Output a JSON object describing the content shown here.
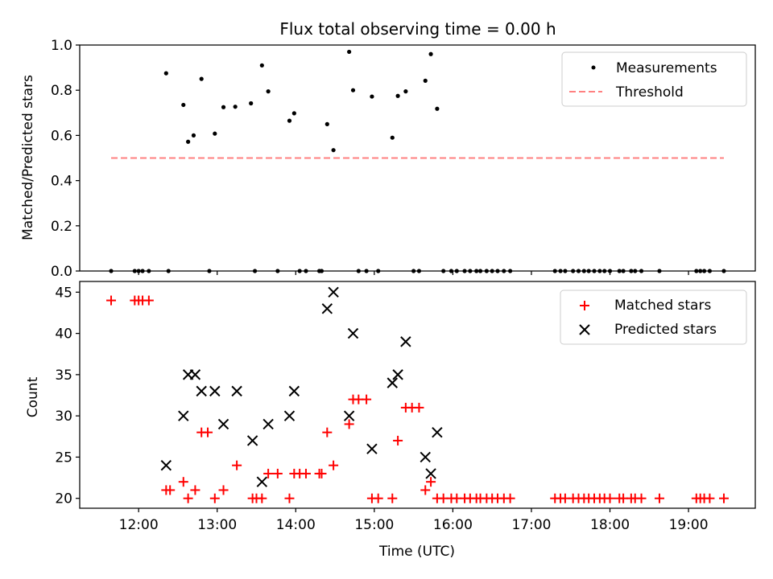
{
  "chart_data": [
    {
      "type": "scatter",
      "title": "Flux total observing time = 0.00 h",
      "ylabel": "Matched/Predicted stars",
      "xlabel": "",
      "ylim": [
        0,
        1.0
      ],
      "xlim": [
        11.25,
        19.85
      ],
      "yticks": [
        "0.0",
        "0.2",
        "0.4",
        "0.6",
        "0.8",
        "1.0"
      ],
      "grid": false,
      "legend_position": "top-right",
      "legend": [
        "Measurements",
        "Threshold"
      ],
      "series": [
        {
          "name": "Measurements",
          "marker": "dot",
          "color": "#000000",
          "points": [
            [
              11.65,
              0
            ],
            [
              11.95,
              0
            ],
            [
              12.0,
              0
            ],
            [
              12.05,
              0
            ],
            [
              12.13,
              0
            ],
            [
              12.35,
              0.875
            ],
            [
              12.38,
              0
            ],
            [
              12.57,
              0.735
            ],
            [
              12.63,
              0.572
            ],
            [
              12.7,
              0.6
            ],
            [
              12.8,
              0.85
            ],
            [
              12.9,
              0
            ],
            [
              12.97,
              0.608
            ],
            [
              13.08,
              0.725
            ],
            [
              13.23,
              0.727
            ],
            [
              13.43,
              0.742
            ],
            [
              13.48,
              0
            ],
            [
              13.57,
              0.91
            ],
            [
              13.65,
              0.795
            ],
            [
              13.77,
              0
            ],
            [
              13.92,
              0.665
            ],
            [
              13.98,
              0.698
            ],
            [
              14.05,
              0
            ],
            [
              14.13,
              0
            ],
            [
              14.3,
              0
            ],
            [
              14.33,
              0
            ],
            [
              14.4,
              0.65
            ],
            [
              14.48,
              0.535
            ],
            [
              14.68,
              0.97
            ],
            [
              14.73,
              0.8
            ],
            [
              14.8,
              0
            ],
            [
              14.9,
              0
            ],
            [
              14.97,
              0.772
            ],
            [
              15.05,
              0
            ],
            [
              15.23,
              0.59
            ],
            [
              15.3,
              0.775
            ],
            [
              15.4,
              0.795
            ],
            [
              15.5,
              0
            ],
            [
              15.57,
              0
            ],
            [
              15.65,
              0.842
            ],
            [
              15.72,
              0.96
            ],
            [
              15.8,
              0.718
            ],
            [
              15.88,
              0
            ],
            [
              15.98,
              0
            ],
            [
              16.05,
              0
            ],
            [
              16.15,
              0
            ],
            [
              16.22,
              0
            ],
            [
              16.3,
              0
            ],
            [
              16.35,
              0
            ],
            [
              16.43,
              0
            ],
            [
              16.5,
              0
            ],
            [
              16.57,
              0
            ],
            [
              16.65,
              0
            ],
            [
              16.73,
              0
            ],
            [
              17.3,
              0
            ],
            [
              17.37,
              0
            ],
            [
              17.43,
              0
            ],
            [
              17.53,
              0
            ],
            [
              17.6,
              0
            ],
            [
              17.67,
              0
            ],
            [
              17.73,
              0
            ],
            [
              17.8,
              0
            ],
            [
              17.87,
              0
            ],
            [
              17.93,
              0
            ],
            [
              18.0,
              0
            ],
            [
              18.12,
              0
            ],
            [
              18.17,
              0
            ],
            [
              18.27,
              0
            ],
            [
              18.32,
              0
            ],
            [
              18.4,
              0
            ],
            [
              18.63,
              0
            ],
            [
              19.1,
              0
            ],
            [
              19.15,
              0
            ],
            [
              19.2,
              0
            ],
            [
              19.27,
              0
            ],
            [
              19.45,
              0
            ]
          ]
        },
        {
          "name": "Threshold",
          "line_style": "dashed",
          "color": "#ff8080",
          "x": [
            11.65,
            19.45
          ],
          "y": [
            0.5,
            0.5
          ]
        }
      ]
    },
    {
      "type": "scatter",
      "title": "",
      "ylabel": "Count",
      "xlabel": "Time (UTC)",
      "ylim": [
        18.8,
        46.3
      ],
      "xlim": [
        11.25,
        19.85
      ],
      "yticks": [
        "20",
        "25",
        "30",
        "35",
        "40",
        "45"
      ],
      "xticks": [
        "12:00",
        "13:00",
        "14:00",
        "15:00",
        "16:00",
        "17:00",
        "18:00",
        "19:00"
      ],
      "grid": false,
      "legend_position": "top-right",
      "legend": [
        "Matched stars",
        "Predicted stars"
      ],
      "series": [
        {
          "name": "Matched stars",
          "marker": "plus",
          "color": "#ff0000",
          "points": [
            [
              11.65,
              44
            ],
            [
              11.95,
              44
            ],
            [
              12.0,
              44
            ],
            [
              12.05,
              44
            ],
            [
              12.13,
              44
            ],
            [
              12.35,
              21
            ],
            [
              12.4,
              21
            ],
            [
              12.57,
              22
            ],
            [
              12.63,
              20
            ],
            [
              12.72,
              21
            ],
            [
              12.8,
              28
            ],
            [
              12.88,
              28
            ],
            [
              12.97,
              20
            ],
            [
              13.08,
              21
            ],
            [
              13.25,
              24
            ],
            [
              13.45,
              20
            ],
            [
              13.5,
              20
            ],
            [
              13.57,
              20
            ],
            [
              13.65,
              23
            ],
            [
              13.77,
              23
            ],
            [
              13.92,
              20
            ],
            [
              13.98,
              23
            ],
            [
              14.05,
              23
            ],
            [
              14.13,
              23
            ],
            [
              14.3,
              23
            ],
            [
              14.33,
              23
            ],
            [
              14.4,
              28
            ],
            [
              14.48,
              24
            ],
            [
              14.68,
              29
            ],
            [
              14.73,
              32
            ],
            [
              14.8,
              32
            ],
            [
              14.9,
              32
            ],
            [
              14.97,
              20
            ],
            [
              15.05,
              20
            ],
            [
              15.23,
              20
            ],
            [
              15.3,
              27
            ],
            [
              15.4,
              31
            ],
            [
              15.48,
              31
            ],
            [
              15.57,
              31
            ],
            [
              15.65,
              21
            ],
            [
              15.72,
              22
            ],
            [
              15.8,
              20
            ],
            [
              15.88,
              20
            ],
            [
              15.98,
              20
            ],
            [
              16.05,
              20
            ],
            [
              16.15,
              20
            ],
            [
              16.22,
              20
            ],
            [
              16.3,
              20
            ],
            [
              16.35,
              20
            ],
            [
              16.43,
              20
            ],
            [
              16.5,
              20
            ],
            [
              16.57,
              20
            ],
            [
              16.65,
              20
            ],
            [
              16.73,
              20
            ],
            [
              17.3,
              20
            ],
            [
              17.37,
              20
            ],
            [
              17.43,
              20
            ],
            [
              17.53,
              20
            ],
            [
              17.6,
              20
            ],
            [
              17.67,
              20
            ],
            [
              17.73,
              20
            ],
            [
              17.8,
              20
            ],
            [
              17.87,
              20
            ],
            [
              17.93,
              20
            ],
            [
              18.0,
              20
            ],
            [
              18.12,
              20
            ],
            [
              18.17,
              20
            ],
            [
              18.27,
              20
            ],
            [
              18.32,
              20
            ],
            [
              18.4,
              20
            ],
            [
              18.63,
              20
            ],
            [
              19.1,
              20
            ],
            [
              19.15,
              20
            ],
            [
              19.2,
              20
            ],
            [
              19.27,
              20
            ],
            [
              19.45,
              20
            ]
          ]
        },
        {
          "name": "Predicted stars",
          "marker": "x",
          "color": "#000000",
          "points": [
            [
              12.35,
              24
            ],
            [
              12.57,
              30
            ],
            [
              12.63,
              35
            ],
            [
              12.72,
              35
            ],
            [
              12.8,
              33
            ],
            [
              12.97,
              33
            ],
            [
              13.08,
              29
            ],
            [
              13.25,
              33
            ],
            [
              13.45,
              27
            ],
            [
              13.57,
              22
            ],
            [
              13.65,
              29
            ],
            [
              13.92,
              30
            ],
            [
              13.98,
              33
            ],
            [
              14.4,
              43
            ],
            [
              14.48,
              45
            ],
            [
              14.68,
              30
            ],
            [
              14.73,
              40
            ],
            [
              14.97,
              26
            ],
            [
              15.23,
              34
            ],
            [
              15.3,
              35
            ],
            [
              15.4,
              39
            ],
            [
              15.65,
              25
            ],
            [
              15.72,
              23
            ],
            [
              15.8,
              28
            ]
          ]
        }
      ]
    }
  ]
}
